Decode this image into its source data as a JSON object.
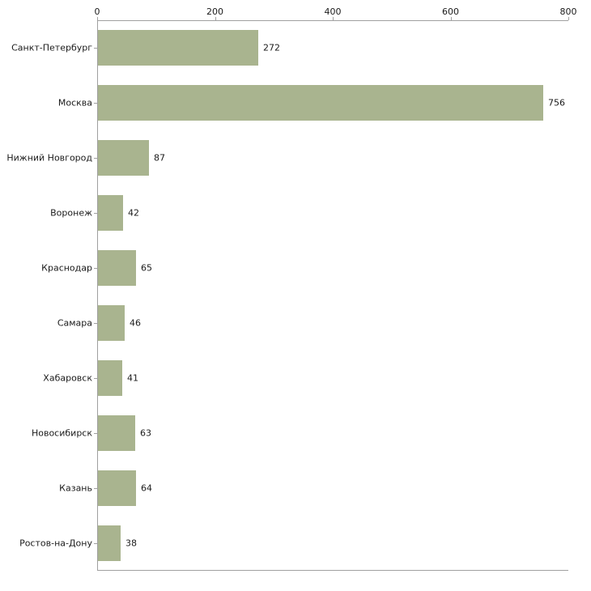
{
  "chart_data": {
    "type": "bar",
    "orientation": "horizontal",
    "title": "",
    "xlabel": "",
    "ylabel": "",
    "categories": [
      "Санкт-Петербург",
      "Москва",
      "Нижний Новгород",
      "Воронеж",
      "Краснодар",
      "Самара",
      "Хабаровск",
      "Новосибирск",
      "Казань",
      "Ростов-на-Дону"
    ],
    "values": [
      272,
      756,
      87,
      42,
      65,
      46,
      41,
      63,
      64,
      38
    ],
    "xlim": [
      0,
      800
    ],
    "xticks": [
      "0",
      "200",
      "400",
      "600",
      "800"
    ],
    "legend": "none",
    "grid": "off",
    "bar_color": "#a9b48f",
    "axis_color": "#a0a0a0",
    "text_color": "#1a1a1a"
  },
  "layout_note": "horizontal bar chart, x-axis ticks on top, value labels right of bars"
}
